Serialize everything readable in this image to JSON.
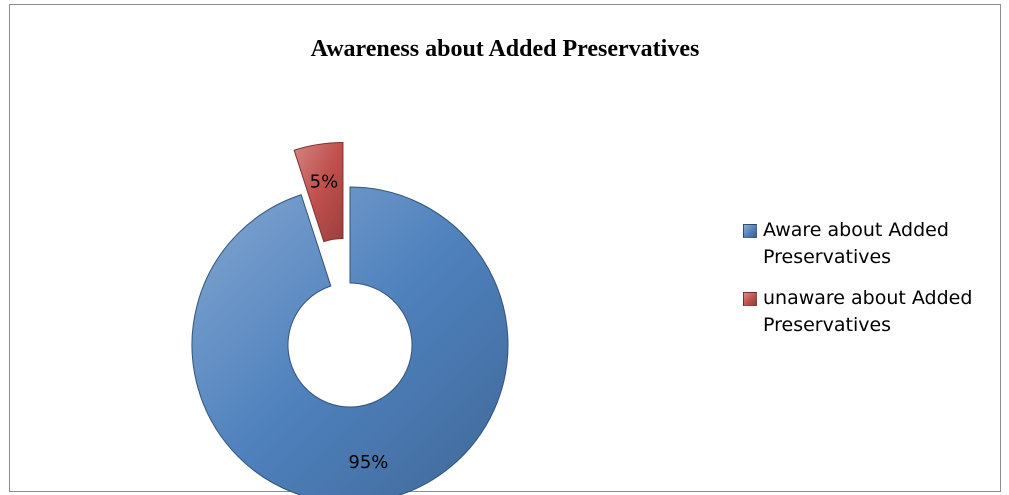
{
  "chart_data": {
    "type": "pie",
    "title": "Awareness about Added Preservatives",
    "categories": [
      "Aware about Added Preservatives",
      "unaware about Added Preservatives"
    ],
    "values": [
      95,
      5
    ],
    "labels": [
      "95%",
      "5%"
    ],
    "colors": [
      "#4f81bd",
      "#c0504d"
    ],
    "style": "exploded doughnut",
    "legend_position": "right"
  }
}
